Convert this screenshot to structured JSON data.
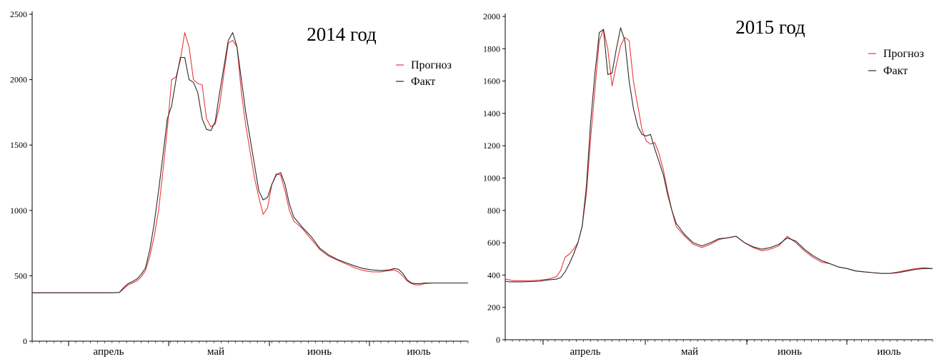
{
  "chart_data": [
    {
      "type": "line",
      "title": "2014 год",
      "ylim": [
        0,
        2500
      ],
      "yticks": [
        0,
        500,
        1000,
        1500,
        2000,
        2500
      ],
      "months": [
        "апрель",
        "май",
        "июнь",
        "июль"
      ],
      "grid": false,
      "legend_position": "top-right",
      "series": [
        {
          "name": "Прогноз",
          "color": "#e8393d",
          "x": [
            0,
            4,
            8,
            12,
            16,
            20,
            24,
            28,
            32,
            36,
            40,
            42,
            44,
            46,
            48,
            50,
            52,
            54,
            56,
            58,
            60,
            62,
            64,
            66,
            68,
            70,
            72,
            74,
            76,
            78,
            80,
            82,
            84,
            86,
            88,
            90,
            92,
            94,
            96,
            98,
            100,
            102,
            104,
            106,
            108,
            110,
            112,
            114,
            116,
            118,
            120,
            124,
            128,
            132,
            136,
            140,
            144,
            148,
            152,
            156,
            160,
            164,
            166,
            168,
            170,
            172,
            174,
            176,
            178,
            180,
            184,
            188,
            192,
            196,
            200
          ],
          "values": [
            370,
            370,
            370,
            370,
            370,
            370,
            370,
            370,
            370,
            370,
            372,
            400,
            430,
            445,
            460,
            490,
            540,
            650,
            800,
            1000,
            1300,
            1620,
            2000,
            2020,
            2150,
            2360,
            2250,
            2000,
            1970,
            1960,
            1700,
            1640,
            1660,
            1800,
            2050,
            2280,
            2300,
            2250,
            1900,
            1650,
            1450,
            1250,
            1100,
            970,
            1020,
            1200,
            1280,
            1270,
            1150,
            1000,
            920,
            860,
            780,
            700,
            650,
            620,
            590,
            560,
            540,
            530,
            530,
            540,
            545,
            530,
            500,
            460,
            440,
            430,
            430,
            440,
            445,
            445,
            445,
            445,
            445
          ]
        },
        {
          "name": "Факт",
          "color": "#2b2b2b",
          "x": [
            0,
            4,
            8,
            12,
            16,
            20,
            24,
            28,
            32,
            36,
            40,
            42,
            44,
            46,
            48,
            50,
            52,
            54,
            56,
            58,
            60,
            62,
            64,
            66,
            68,
            70,
            72,
            74,
            76,
            78,
            80,
            82,
            84,
            86,
            88,
            90,
            92,
            94,
            96,
            98,
            100,
            102,
            104,
            106,
            108,
            110,
            112,
            114,
            116,
            118,
            120,
            124,
            128,
            132,
            136,
            140,
            144,
            148,
            152,
            156,
            160,
            164,
            166,
            168,
            170,
            172,
            174,
            176,
            178,
            180,
            184,
            188,
            192,
            196,
            200
          ],
          "values": [
            370,
            370,
            370,
            370,
            370,
            370,
            370,
            370,
            370,
            370,
            372,
            410,
            440,
            455,
            475,
            510,
            560,
            700,
            900,
            1150,
            1420,
            1700,
            1800,
            2000,
            2170,
            2170,
            2000,
            1980,
            1900,
            1700,
            1620,
            1610,
            1680,
            1900,
            2100,
            2300,
            2360,
            2250,
            2000,
            1750,
            1550,
            1350,
            1150,
            1080,
            1100,
            1200,
            1270,
            1290,
            1200,
            1050,
            950,
            870,
            800,
            710,
            660,
            625,
            600,
            575,
            555,
            545,
            540,
            545,
            555,
            550,
            520,
            470,
            445,
            440,
            440,
            445,
            445,
            445,
            445,
            445,
            445
          ]
        }
      ]
    },
    {
      "type": "line",
      "title": "2015 год",
      "ylim": [
        0,
        2000
      ],
      "yticks": [
        0,
        200,
        400,
        600,
        800,
        1000,
        1200,
        1400,
        1600,
        1800,
        2000
      ],
      "months": [
        "апрель",
        "май",
        "июнь",
        "июль"
      ],
      "grid": false,
      "legend_position": "top-right",
      "series": [
        {
          "name": "Прогноз",
          "color": "#e8393d",
          "x": [
            0,
            2,
            4,
            8,
            12,
            16,
            20,
            24,
            26,
            28,
            30,
            32,
            34,
            36,
            38,
            40,
            42,
            44,
            46,
            48,
            50,
            52,
            54,
            56,
            58,
            60,
            62,
            64,
            66,
            68,
            70,
            72,
            74,
            76,
            78,
            80,
            84,
            88,
            92,
            96,
            100,
            104,
            108,
            112,
            116,
            120,
            124,
            128,
            132,
            136,
            140,
            144,
            148,
            152,
            156,
            160,
            164,
            168,
            172,
            176,
            180,
            184,
            188,
            192,
            196,
            200
          ],
          "values": [
            375,
            370,
            365,
            365,
            365,
            368,
            375,
            390,
            430,
            510,
            530,
            560,
            600,
            700,
            900,
            1250,
            1550,
            1850,
            1920,
            1800,
            1570,
            1700,
            1820,
            1870,
            1850,
            1600,
            1450,
            1300,
            1230,
            1210,
            1220,
            1150,
            1050,
            920,
            800,
            700,
            640,
            590,
            570,
            590,
            620,
            630,
            640,
            600,
            570,
            550,
            560,
            580,
            640,
            600,
            550,
            510,
            480,
            470,
            450,
            440,
            425,
            420,
            415,
            410,
            410,
            420,
            430,
            440,
            445,
            440
          ]
        },
        {
          "name": "Факт",
          "color": "#2b2b2b",
          "x": [
            0,
            2,
            4,
            8,
            12,
            16,
            20,
            24,
            26,
            28,
            30,
            32,
            34,
            36,
            38,
            40,
            42,
            44,
            46,
            48,
            50,
            52,
            54,
            56,
            58,
            60,
            62,
            64,
            66,
            68,
            70,
            72,
            74,
            76,
            78,
            80,
            84,
            88,
            92,
            96,
            100,
            104,
            108,
            112,
            116,
            120,
            124,
            128,
            132,
            136,
            140,
            144,
            148,
            152,
            156,
            160,
            164,
            168,
            172,
            176,
            180,
            184,
            188,
            192,
            196,
            200
          ],
          "values": [
            362,
            358,
            358,
            358,
            360,
            362,
            370,
            375,
            385,
            420,
            470,
            530,
            600,
            700,
            950,
            1350,
            1650,
            1900,
            1920,
            1640,
            1650,
            1800,
            1930,
            1850,
            1600,
            1430,
            1320,
            1270,
            1260,
            1270,
            1180,
            1100,
            1020,
            900,
            800,
            720,
            650,
            600,
            580,
            600,
            625,
            630,
            640,
            600,
            575,
            560,
            570,
            590,
            630,
            610,
            560,
            520,
            490,
            470,
            450,
            440,
            425,
            420,
            415,
            410,
            410,
            415,
            425,
            435,
            440,
            440
          ]
        }
      ]
    }
  ]
}
